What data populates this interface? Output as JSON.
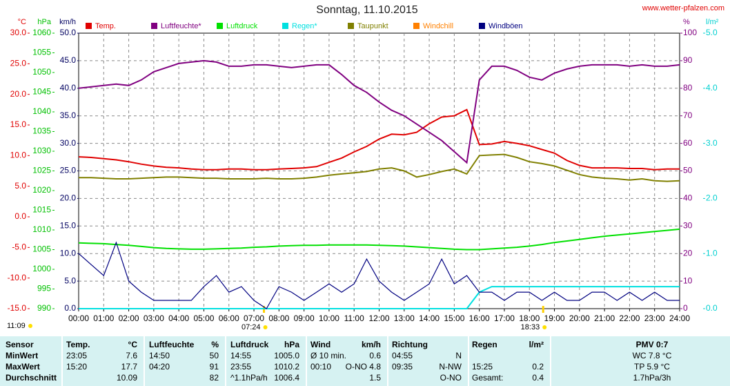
{
  "chart_data": {
    "type": "line",
    "title": "Sonntag, 11.10.2015",
    "site": "www.wetter-pfalzen.com",
    "note": "11:09",
    "sun_markers": [
      {
        "label": "07:24",
        "x": 7.4
      },
      {
        "label": "18:33",
        "x": 18.55
      }
    ],
    "xlim": [
      0,
      24
    ],
    "xticks": [
      {
        "value": 0,
        "label": "00:00"
      },
      {
        "value": 1,
        "label": "01:00"
      },
      {
        "value": 2,
        "label": "02:00"
      },
      {
        "value": 3,
        "label": "03:00"
      },
      {
        "value": 4,
        "label": "04:00"
      },
      {
        "value": 5,
        "label": "05:00"
      },
      {
        "value": 6,
        "label": "06:00"
      },
      {
        "value": 7,
        "label": "07:00"
      },
      {
        "value": 8,
        "label": "08:00"
      },
      {
        "value": 9,
        "label": "09:00"
      },
      {
        "value": 10,
        "label": "10:00"
      },
      {
        "value": 11,
        "label": "11:00"
      },
      {
        "value": 12,
        "label": "12:00"
      },
      {
        "value": 13,
        "label": "13:00"
      },
      {
        "value": 14,
        "label": "14:00"
      },
      {
        "value": 15,
        "label": "15:00"
      },
      {
        "value": 16,
        "label": "16:00"
      },
      {
        "value": 17,
        "label": "17:00"
      },
      {
        "value": 18,
        "label": "18:00"
      },
      {
        "value": 19,
        "label": "19:00"
      },
      {
        "value": 20,
        "label": "20:00"
      },
      {
        "value": 21,
        "label": "21:00"
      },
      {
        "value": 22,
        "label": "22:00"
      },
      {
        "value": 23,
        "label": "23:00"
      },
      {
        "value": 24,
        "label": "24:00"
      }
    ],
    "grid": true,
    "axes": {
      "temp": {
        "label": "°C",
        "color": "#e00000",
        "side": "left",
        "lim": [
          -15,
          30
        ],
        "ticks": [
          {
            "value": 30,
            "label": "30.0"
          },
          {
            "value": 25,
            "label": "25.0"
          },
          {
            "value": 20,
            "label": "20.0"
          },
          {
            "value": 15,
            "label": "15.0"
          },
          {
            "value": 10,
            "label": "10.0"
          },
          {
            "value": 5,
            "label": "5.0"
          },
          {
            "value": 0,
            "label": "0.0"
          },
          {
            "value": -5,
            "label": "-5.0"
          },
          {
            "value": -10,
            "label": "-10.0"
          },
          {
            "value": -15,
            "label": "-15.0"
          }
        ]
      },
      "press": {
        "label": "hPa",
        "color": "#00c000",
        "side": "left",
        "lim": [
          990,
          1060
        ],
        "ticks": [
          1060,
          1055,
          1050,
          1045,
          1040,
          1035,
          1030,
          1025,
          1020,
          1015,
          1010,
          1005,
          1000,
          995,
          990
        ]
      },
      "wind": {
        "label": "km/h",
        "color": "#000060",
        "side": "left",
        "lim": [
          0,
          50
        ],
        "ticks": [
          {
            "value": 50,
            "label": "50.0"
          },
          {
            "value": 45,
            "label": "45.0"
          },
          {
            "value": 40,
            "label": "40.0"
          },
          {
            "value": 35,
            "label": "35.0"
          },
          {
            "value": 30,
            "label": "30.0"
          },
          {
            "value": 25,
            "label": "25.0"
          },
          {
            "value": 20,
            "label": "20.0"
          },
          {
            "value": 15,
            "label": "15.0"
          },
          {
            "value": 10,
            "label": "10.0"
          },
          {
            "value": 5,
            "label": "5.0"
          },
          {
            "value": 0,
            "label": "0.0"
          }
        ]
      },
      "hum": {
        "label": "%",
        "color": "#800080",
        "side": "right",
        "lim": [
          0,
          100
        ],
        "ticks": [
          100,
          90,
          80,
          70,
          60,
          50,
          40,
          30,
          20,
          10,
          0
        ]
      },
      "rain": {
        "label": "l/m²",
        "color": "#00d0d0",
        "side": "right",
        "lim": [
          0,
          5
        ],
        "ticks": [
          {
            "value": 5,
            "label": "5.0"
          },
          {
            "value": 4,
            "label": "4.0"
          },
          {
            "value": 3,
            "label": "3.0"
          },
          {
            "value": 2,
            "label": "2.0"
          },
          {
            "value": 1,
            "label": "1.0"
          },
          {
            "value": 0,
            "label": "0.0"
          }
        ]
      }
    },
    "x": [
      0,
      0.5,
      1,
      1.5,
      2,
      2.5,
      3,
      3.5,
      4,
      4.5,
      5,
      5.5,
      6,
      6.5,
      7,
      7.5,
      8,
      8.5,
      9,
      9.5,
      10,
      10.5,
      11,
      11.5,
      12,
      12.5,
      13,
      13.5,
      14,
      14.5,
      15,
      15.5,
      16,
      16.5,
      17,
      17.5,
      18,
      18.5,
      19,
      19.5,
      20,
      20.5,
      21,
      21.5,
      22,
      22.5,
      23,
      23.5,
      24
    ],
    "series": [
      {
        "name": "Temp.",
        "color": "#e00000",
        "axis": "temp",
        "values": [
          9.8,
          9.7,
          9.5,
          9.3,
          9.0,
          8.6,
          8.3,
          8.1,
          8.0,
          7.8,
          7.7,
          7.7,
          7.8,
          7.8,
          7.7,
          7.7,
          7.8,
          7.9,
          8.0,
          8.2,
          8.9,
          9.6,
          10.6,
          11.5,
          12.7,
          13.5,
          13.4,
          13.8,
          15.2,
          16.3,
          16.5,
          17.5,
          11.8,
          11.9,
          12.3,
          12.0,
          11.6,
          11.0,
          10.4,
          9.2,
          8.4,
          8.0,
          8.0,
          8.0,
          7.9,
          7.9,
          7.7,
          7.8,
          7.8
        ]
      },
      {
        "name": "Luftfeuchte*",
        "color": "#800080",
        "axis": "hum",
        "values": [
          80,
          80.5,
          81,
          81.5,
          81,
          83,
          86,
          87.5,
          89,
          89.5,
          90,
          89.5,
          88,
          88,
          88.5,
          88.5,
          88,
          87.5,
          88,
          88.5,
          88.5,
          85,
          81,
          78.5,
          75,
          72,
          70,
          67,
          64,
          61,
          57,
          53,
          83,
          88,
          88,
          86.5,
          84,
          83,
          85.5,
          87,
          88,
          88.5,
          88.5,
          88.5,
          88,
          88.5,
          88,
          88,
          88.5
        ]
      },
      {
        "name": "Luftdruck",
        "color": "#00e000",
        "axis": "press",
        "values": [
          1006.7,
          1006.6,
          1006.5,
          1006.3,
          1006.1,
          1005.8,
          1005.5,
          1005.3,
          1005.2,
          1005.1,
          1005.1,
          1005.2,
          1005.3,
          1005.4,
          1005.6,
          1005.7,
          1005.9,
          1006.0,
          1006.1,
          1006.1,
          1006.2,
          1006.2,
          1006.2,
          1006.2,
          1006.1,
          1006.0,
          1005.9,
          1005.7,
          1005.5,
          1005.3,
          1005.1,
          1005.0,
          1005.0,
          1005.2,
          1005.4,
          1005.6,
          1005.9,
          1006.3,
          1006.8,
          1007.2,
          1007.6,
          1008.0,
          1008.4,
          1008.7,
          1009.0,
          1009.3,
          1009.6,
          1009.9,
          1010.2
        ]
      },
      {
        "name": "Regen*",
        "color": "#00e0e0",
        "axis": "rain",
        "values": [
          0,
          0,
          0,
          0,
          0,
          0,
          0,
          0,
          0,
          0,
          0,
          0,
          0,
          0,
          0,
          0,
          0,
          0,
          0,
          0,
          0,
          0,
          0,
          0,
          0,
          0,
          0,
          0,
          0,
          0,
          0,
          0,
          0.3,
          0.4,
          0.4,
          0.4,
          0.4,
          0.4,
          0.4,
          0.4,
          0.4,
          0.4,
          0.4,
          0.4,
          0.4,
          0.4,
          0.4,
          0.4,
          0.4
        ]
      },
      {
        "name": "Taupunkt",
        "color": "#808000",
        "axis": "temp",
        "values": [
          6.4,
          6.4,
          6.3,
          6.2,
          6.2,
          6.3,
          6.4,
          6.5,
          6.5,
          6.4,
          6.3,
          6.3,
          6.2,
          6.2,
          6.2,
          6.3,
          6.2,
          6.2,
          6.3,
          6.5,
          6.8,
          7.0,
          7.2,
          7.4,
          7.8,
          8.0,
          7.5,
          6.5,
          6.9,
          7.4,
          7.8,
          7.0,
          10.0,
          10.1,
          10.2,
          9.7,
          9.0,
          8.7,
          8.3,
          7.6,
          6.9,
          6.5,
          6.3,
          6.2,
          6.0,
          6.2,
          5.9,
          5.8,
          5.9
        ]
      },
      {
        "name": "Windchill",
        "color": "#ff8000",
        "axis": "temp",
        "values": [
          null,
          null,
          null,
          null,
          null,
          null,
          null,
          null,
          null,
          null,
          null,
          null,
          null,
          null,
          null,
          null,
          null,
          null,
          null,
          null,
          null,
          null,
          null,
          null,
          null,
          null,
          null,
          null,
          null,
          null,
          null,
          null,
          null,
          null,
          null,
          null,
          null,
          null,
          null,
          null,
          null,
          null,
          null,
          null,
          null,
          null,
          null,
          null,
          null
        ]
      },
      {
        "name": "Windböen",
        "color": "#000080",
        "axis": "wind",
        "values": [
          10,
          8,
          6,
          12,
          5,
          3,
          1.5,
          1.5,
          1.5,
          1.5,
          4,
          6,
          3,
          4,
          1.5,
          0,
          4,
          3,
          1.5,
          3,
          4.5,
          3,
          4.5,
          9,
          5,
          3,
          1.5,
          3,
          4.5,
          9,
          4.5,
          6,
          3,
          3,
          1.5,
          3,
          3,
          1.5,
          3,
          1.5,
          1.5,
          3,
          3,
          1.5,
          3,
          1.5,
          3,
          1.5,
          1.5
        ]
      }
    ]
  },
  "table": {
    "rows": [
      [
        "Sensor",
        "Temp.",
        "°C",
        "Luftfeuchte",
        "%",
        "Luftdruck",
        "hPa",
        "Wind",
        "km/h",
        "Richtung",
        null,
        "Regen",
        "l/m²",
        "PMV 0:7"
      ],
      [
        "MinWert",
        "23:05",
        "7.6",
        "14:50",
        "50",
        "14:55",
        "1005.0",
        "Ø 10 min.",
        "0.6",
        "04:55",
        "N",
        null,
        null,
        "WC 7.8 °C"
      ],
      [
        "MaxWert",
        "15:20",
        "17.7",
        "04:20",
        "91",
        "23:55",
        "1010.2",
        "00:10",
        "O-NO 4.8",
        "09:35",
        "N-NW",
        "15:25",
        "0.2",
        "TP 5.9 °C"
      ],
      [
        "Durchschnitt",
        null,
        "10.09",
        null,
        "82",
        "^1.1hPa/h",
        "1006.4",
        null,
        "1.5",
        null,
        "O-NO",
        "Gesamt:",
        "0.4",
        "1.7hPa/3h"
      ]
    ]
  }
}
